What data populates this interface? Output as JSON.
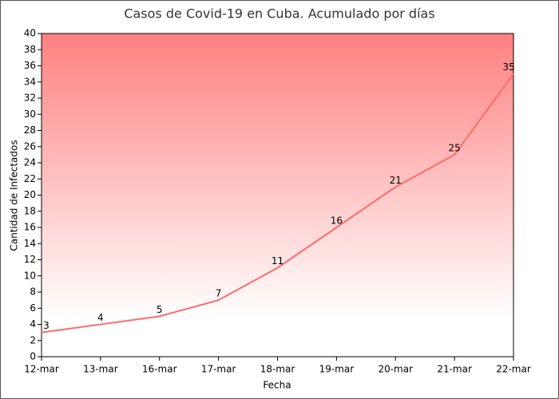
{
  "chart_data": {
    "type": "line",
    "title": "Casos de Covid-19 en Cuba. Acumulado por días",
    "x_label": "Fecha",
    "y_label": "Cantidad de Infectados",
    "categories": [
      "12-mar",
      "13-mar",
      "16-mar",
      "17-mar",
      "18-mar",
      "19-mar",
      "20-mar",
      "21-mar",
      "22-mar"
    ],
    "series": [
      {
        "name": "Casos",
        "color": "#ff6b6b",
        "values": [
          3,
          4,
          5,
          7,
          11,
          16,
          21,
          25,
          35
        ]
      }
    ],
    "ylim": [
      0,
      40
    ],
    "yticks": [
      0,
      2,
      4,
      6,
      8,
      10,
      12,
      14,
      16,
      18,
      20,
      22,
      24,
      26,
      28,
      30,
      32,
      34,
      36,
      38,
      40
    ],
    "background_gradient": [
      "#ff8080",
      "#ffffff"
    ]
  }
}
